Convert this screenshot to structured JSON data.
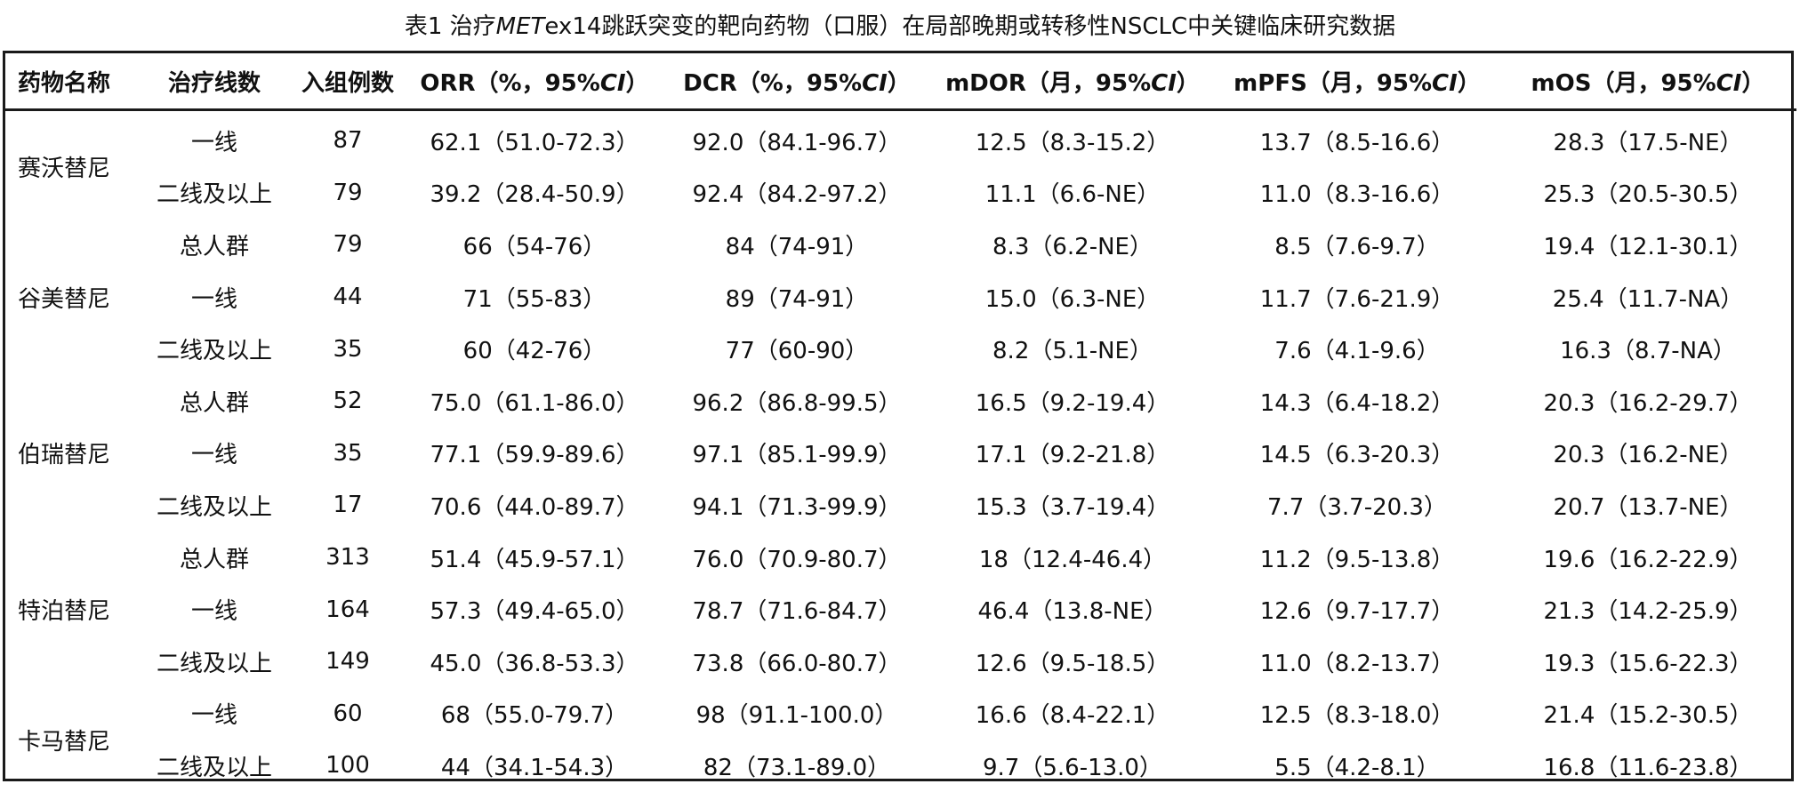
{
  "caption": {
    "prefix": "表1 治疗",
    "italic": "MET",
    "suffix": "ex14跳跃突变的靶向药物（口服）在局部晚期或转移性NSCLC中关键临床研究数据"
  },
  "table": {
    "headers": [
      {
        "text": "药物名称",
        "italic": ""
      },
      {
        "text": "治疗线数",
        "italic": ""
      },
      {
        "text": "入组例数",
        "italic": ""
      },
      {
        "text": "ORR（%，95%",
        "italic": "CI",
        "close": "）"
      },
      {
        "text": "DCR（%，95%",
        "italic": "CI",
        "close": "）"
      },
      {
        "text": "mDOR（月，95%",
        "italic": "CI",
        "close": "）"
      },
      {
        "text": "mPFS（月，95%",
        "italic": "CI",
        "close": "）"
      },
      {
        "text": "mOS（月，95%",
        "italic": "CI",
        "close": "）"
      }
    ],
    "drugs": [
      {
        "name": "赛沃替尼",
        "rowspan": 2
      },
      {
        "name": "谷美替尼",
        "rowspan": 3
      },
      {
        "name": "伯瑞替尼",
        "rowspan": 3
      },
      {
        "name": "特泊替尼",
        "rowspan": 3
      },
      {
        "name": "卡马替尼",
        "rowspan": 2
      }
    ],
    "rows": [
      {
        "drug": "赛沃替尼",
        "line": "一线",
        "n": "87",
        "orr": "62.1（51.0-72.3）",
        "dcr": "92.0（84.1-96.7）",
        "mdor": "12.5（8.3-15.2）",
        "mpfs": "13.7（8.5-16.6）",
        "mos": "28.3（17.5-NE）"
      },
      {
        "drug": "赛沃替尼",
        "line": "二线及以上",
        "n": "79",
        "orr": "39.2（28.4-50.9）",
        "dcr": "92.4（84.2-97.2）",
        "mdor": "11.1（6.6-NE）",
        "mpfs": "11.0（8.3-16.6）",
        "mos": "25.3（20.5-30.5）"
      },
      {
        "drug": "谷美替尼",
        "line": "总人群",
        "n": "79",
        "orr": "66（54-76）",
        "dcr": "84（74-91）",
        "mdor": "8.3（6.2-NE）",
        "mpfs": "8.5（7.6-9.7）",
        "mos": "19.4（12.1-30.1）"
      },
      {
        "drug": "谷美替尼",
        "line": "一线",
        "n": "44",
        "orr": "71（55-83）",
        "dcr": "89（74-91）",
        "mdor": "15.0（6.3-NE）",
        "mpfs": "11.7（7.6-21.9）",
        "mos": "25.4（11.7-NA）"
      },
      {
        "drug": "谷美替尼",
        "line": "二线及以上",
        "n": "35",
        "orr": "60（42-76）",
        "dcr": "77（60-90）",
        "mdor": "8.2（5.1-NE）",
        "mpfs": "7.6（4.1-9.6）",
        "mos": "16.3（8.7-NA）"
      },
      {
        "drug": "伯瑞替尼",
        "line": "总人群",
        "n": "52",
        "orr": "75.0（61.1-86.0）",
        "dcr": "96.2（86.8-99.5）",
        "mdor": "16.5（9.2-19.4）",
        "mpfs": "14.3（6.4-18.2）",
        "mos": "20.3（16.2-29.7）"
      },
      {
        "drug": "伯瑞替尼",
        "line": "一线",
        "n": "35",
        "orr": "77.1（59.9-89.6）",
        "dcr": "97.1（85.1-99.9）",
        "mdor": "17.1（9.2-21.8）",
        "mpfs": "14.5（6.3-20.3）",
        "mos": "20.3（16.2-NE）"
      },
      {
        "drug": "伯瑞替尼",
        "line": "二线及以上",
        "n": "17",
        "orr": "70.6（44.0-89.7）",
        "dcr": "94.1（71.3-99.9）",
        "mdor": "15.3（3.7-19.4）",
        "mpfs": "7.7（3.7-20.3）",
        "mos": "20.7（13.7-NE）"
      },
      {
        "drug": "特泊替尼",
        "line": "总人群",
        "n": "313",
        "orr": "51.4（45.9-57.1）",
        "dcr": "76.0（70.9-80.7）",
        "mdor": "18（12.4-46.4）",
        "mpfs": "11.2（9.5-13.8）",
        "mos": "19.6（16.2-22.9）"
      },
      {
        "drug": "特泊替尼",
        "line": "一线",
        "n": "164",
        "orr": "57.3（49.4-65.0）",
        "dcr": "78.7（71.6-84.7）",
        "mdor": "46.4（13.8-NE）",
        "mpfs": "12.6（9.7-17.7）",
        "mos": "21.3（14.2-25.9）"
      },
      {
        "drug": "特泊替尼",
        "line": "二线及以上",
        "n": "149",
        "orr": "45.0（36.8-53.3）",
        "dcr": "73.8（66.0-80.7）",
        "mdor": "12.6（9.5-18.5）",
        "mpfs": "11.0（8.2-13.7）",
        "mos": "19.3（15.6-22.3）"
      },
      {
        "drug": "卡马替尼",
        "line": "一线",
        "n": "60",
        "orr": "68（55.0-79.7）",
        "dcr": "98（91.1-100.0）",
        "mdor": "16.6（8.4-22.1）",
        "mpfs": "12.5（8.3-18.0）",
        "mos": "21.4（15.2-30.5）"
      },
      {
        "drug": "卡马替尼",
        "line": "二线及以上",
        "n": "100",
        "orr": "44（34.1-54.3）",
        "dcr": "82（73.1-89.0）",
        "mdor": "9.7（5.6-13.0）",
        "mpfs": "5.5（4.2-8.1）",
        "mos": "16.8（11.6-23.8）"
      }
    ]
  }
}
